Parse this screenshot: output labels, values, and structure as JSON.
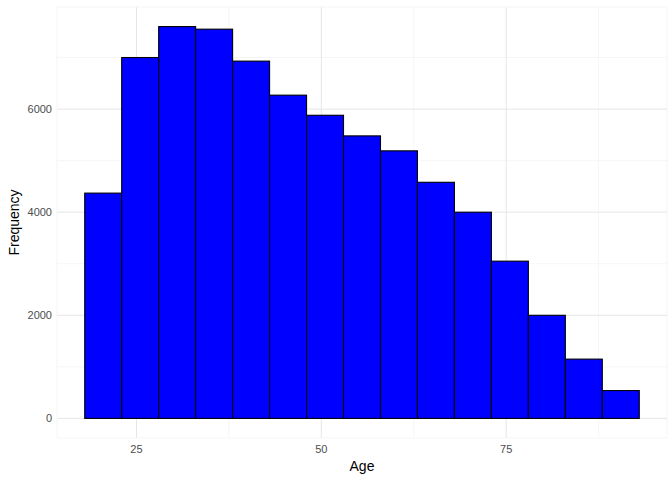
{
  "chart_data": {
    "type": "histogram",
    "x_label": "Age",
    "y_label": "Frequency",
    "bins": [
      18,
      23,
      28,
      33,
      38,
      43,
      48,
      53,
      58,
      63,
      68,
      73,
      78,
      83,
      88,
      93
    ],
    "values": [
      4370,
      7000,
      7600,
      7550,
      6930,
      6270,
      5880,
      5480,
      5190,
      4580,
      4000,
      3050,
      2000,
      1150,
      540
    ],
    "color": "#0000ff",
    "xlim": [
      14.25,
      96.75
    ],
    "xticks": [
      25,
      50,
      75
    ],
    "ylim": [
      -380,
      7980
    ],
    "yticks": [
      0,
      2000,
      4000,
      6000
    ],
    "grid": true
  }
}
